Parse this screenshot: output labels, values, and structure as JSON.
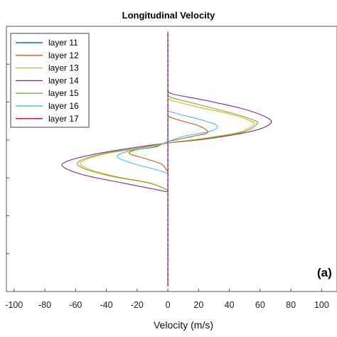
{
  "chart_data": {
    "type": "line",
    "title": "Longitudinal Velocity",
    "xlabel": "Velocity (m/s)",
    "ylabel": "",
    "xlim": [
      -105,
      110
    ],
    "ylim": [
      0,
      1
    ],
    "xticks": [
      -100,
      -80,
      -60,
      -40,
      -20,
      0,
      20,
      40,
      60,
      80,
      100
    ],
    "xtick_labels": [
      "-100",
      "-80",
      "-60",
      "-40",
      "-20",
      "0",
      "20",
      "40",
      "60",
      "80",
      "100"
    ],
    "legend_position": "top-left",
    "grid": false,
    "annotation": "(a)",
    "series": [
      {
        "name": "layer 11",
        "color": "#0072BD",
        "points": [
          [
            0,
            0.02
          ],
          [
            0,
            0.15
          ],
          [
            0,
            0.3
          ],
          [
            0,
            0.45
          ],
          [
            0,
            0.6
          ],
          [
            0,
            0.75
          ],
          [
            0,
            0.9
          ],
          [
            0,
            0.98
          ]
        ]
      },
      {
        "name": "layer 12",
        "color": "#D95319",
        "points": [
          [
            0,
            0.66
          ],
          [
            8,
            0.645
          ],
          [
            20,
            0.625
          ],
          [
            26,
            0.6
          ],
          [
            16,
            0.585
          ],
          [
            0,
            0.565
          ],
          [
            -8,
            0.545
          ],
          [
            -20,
            0.535
          ],
          [
            -25,
            0.52
          ],
          [
            -14,
            0.5
          ],
          [
            -4,
            0.48
          ],
          [
            0,
            0.45
          ]
        ]
      },
      {
        "name": "layer 13",
        "color": "#EDB120",
        "points": [
          [
            0,
            0.73
          ],
          [
            3,
            0.72
          ],
          [
            20,
            0.695
          ],
          [
            40,
            0.67
          ],
          [
            53,
            0.645
          ],
          [
            56,
            0.63
          ],
          [
            46,
            0.6
          ],
          [
            20,
            0.575
          ],
          [
            0,
            0.56
          ],
          [
            -18,
            0.54
          ],
          [
            -40,
            0.52
          ],
          [
            -56,
            0.49
          ],
          [
            -53,
            0.465
          ],
          [
            -35,
            0.435
          ],
          [
            -12,
            0.41
          ],
          [
            -3,
            0.39
          ],
          [
            0,
            0.38
          ]
        ]
      },
      {
        "name": "layer 14",
        "color": "#7E2F8E",
        "points": [
          [
            0,
            0.76
          ],
          [
            3,
            0.745
          ],
          [
            25,
            0.72
          ],
          [
            48,
            0.69
          ],
          [
            63,
            0.66
          ],
          [
            67,
            0.635
          ],
          [
            55,
            0.605
          ],
          [
            25,
            0.575
          ],
          [
            0,
            0.56
          ],
          [
            -25,
            0.54
          ],
          [
            -50,
            0.515
          ],
          [
            -66,
            0.49
          ],
          [
            -68,
            0.47
          ],
          [
            -55,
            0.44
          ],
          [
            -30,
            0.41
          ],
          [
            -8,
            0.385
          ],
          [
            0,
            0.375
          ]
        ]
      },
      {
        "name": "layer 15",
        "color": "#77AC30",
        "points": [
          [
            0,
            0.74
          ],
          [
            3,
            0.73
          ],
          [
            20,
            0.705
          ],
          [
            40,
            0.675
          ],
          [
            55,
            0.648
          ],
          [
            58,
            0.632
          ],
          [
            48,
            0.6
          ],
          [
            22,
            0.575
          ],
          [
            0,
            0.56
          ],
          [
            -20,
            0.54
          ],
          [
            -42,
            0.52
          ],
          [
            -58,
            0.49
          ],
          [
            -55,
            0.465
          ],
          [
            -37,
            0.435
          ],
          [
            -13,
            0.41
          ],
          [
            -3,
            0.39
          ],
          [
            0,
            0.38
          ]
        ]
      },
      {
        "name": "layer 16",
        "color": "#4DBEEE",
        "points": [
          [
            0,
            0.68
          ],
          [
            10,
            0.665
          ],
          [
            23,
            0.645
          ],
          [
            32,
            0.625
          ],
          [
            28,
            0.605
          ],
          [
            10,
            0.585
          ],
          [
            0,
            0.565
          ],
          [
            -10,
            0.545
          ],
          [
            -25,
            0.53
          ],
          [
            -33,
            0.51
          ],
          [
            -24,
            0.485
          ],
          [
            -8,
            0.46
          ],
          [
            0,
            0.445
          ]
        ]
      },
      {
        "name": "layer 17",
        "color": "#A2142F",
        "points": [
          [
            0,
            0.02
          ],
          [
            0,
            0.15
          ],
          [
            0,
            0.3
          ],
          [
            0,
            0.45
          ],
          [
            0,
            0.6
          ],
          [
            0,
            0.75
          ],
          [
            0,
            0.9
          ],
          [
            0,
            0.98
          ]
        ]
      }
    ]
  }
}
